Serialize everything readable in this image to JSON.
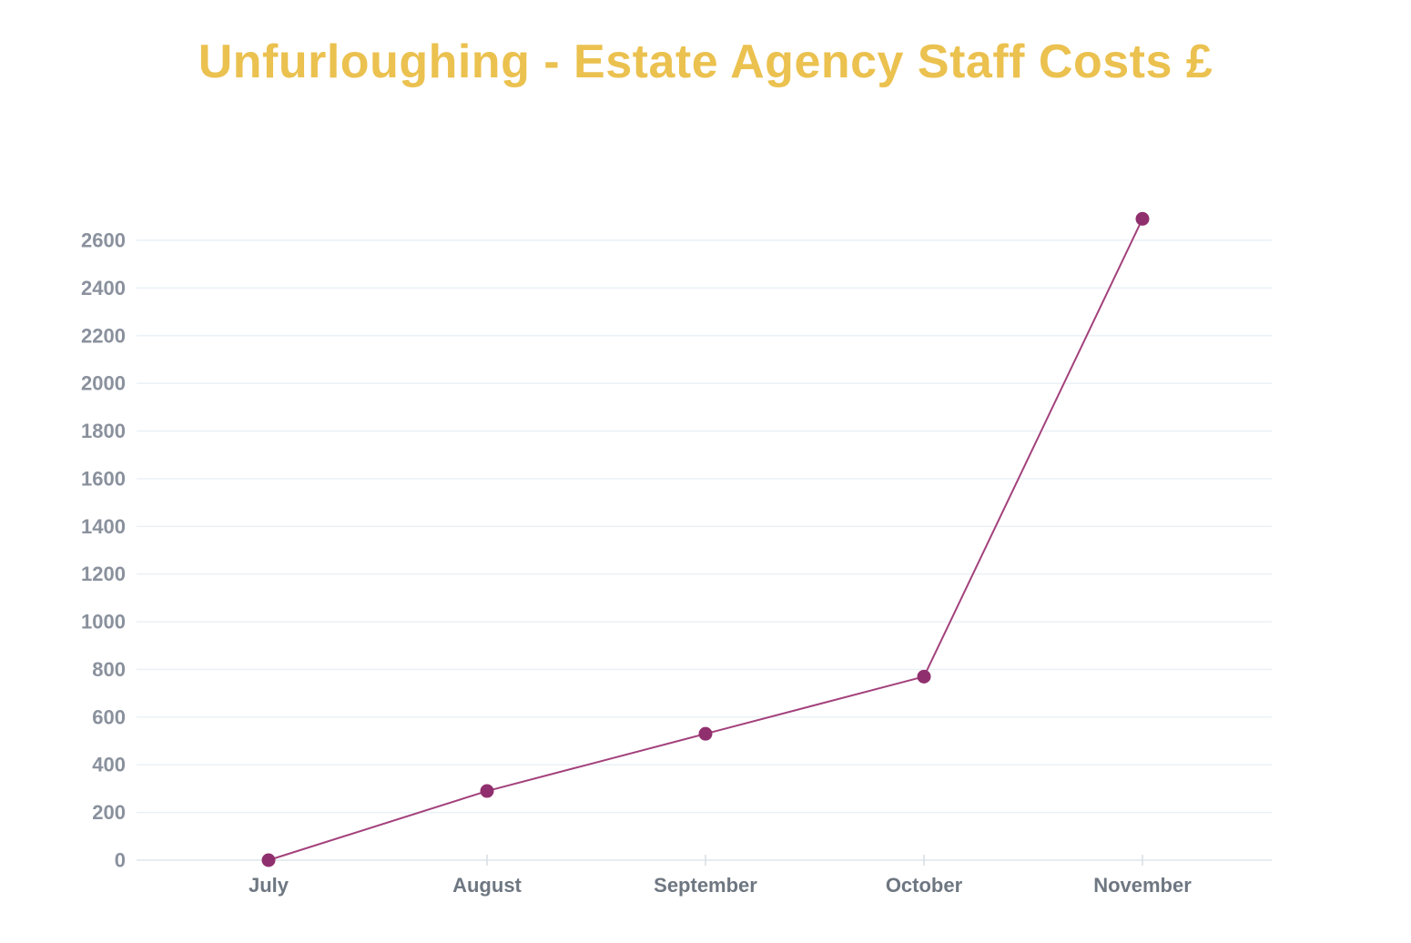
{
  "title": "Unfurloughing - Estate Agency Staff Costs £",
  "colors": {
    "title": "#EBC14F",
    "line": "#A3417C",
    "point": "#902F6E",
    "grid": "#EAF0F5",
    "axis": "#DFE5EA",
    "tick": "#D8DEE4",
    "y_label": "#8A919D",
    "x_label": "#6E7781",
    "background": "#FFFFFF"
  },
  "chart_data": {
    "type": "line",
    "title": "Unfurloughing - Estate Agency Staff Costs £",
    "categories": [
      "July",
      "August",
      "September",
      "October",
      "November"
    ],
    "values": [
      0,
      290,
      530,
      770,
      2690
    ],
    "series_name": "Estate Agency Staff Costs £",
    "xlabel": "",
    "ylabel": "",
    "ylim": [
      0,
      2750
    ],
    "y_tick_min": 0,
    "y_tick_max": 2600,
    "y_tick_step": 200,
    "grid": true,
    "legend": false,
    "marker": "circle"
  }
}
